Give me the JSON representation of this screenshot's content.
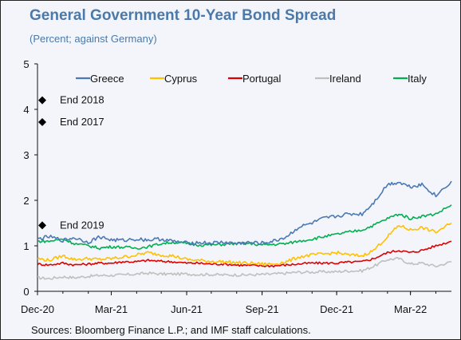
{
  "header": {
    "title": "General Government 10-Year Bond Spread",
    "subtitle": "(Percent; against Germany)"
  },
  "footer": {
    "source": "Sources: Bloomberg Finance L.P.; and IMF staff calculations."
  },
  "colors": {
    "frame_background": "#f3f5fa",
    "title": "#4a79aa",
    "Greece": "#4a79b5",
    "Cyprus": "#ffc000",
    "Portugal": "#e00000",
    "Ireland": "#bfbfbf",
    "Italy": "#00b050"
  },
  "chart_data": {
    "type": "line",
    "title": "General Government 10-Year Bond Spread",
    "subtitle": "(Percent; against Germany)",
    "xlabel": "",
    "ylabel": "",
    "x_ticks": [
      "Dec-20",
      "Mar-21",
      "Jun-21",
      "Sep-21",
      "Dec-21",
      "Mar-22"
    ],
    "xlim": [
      "2020-12-01",
      "2022-04-20"
    ],
    "ylim": [
      0,
      5
    ],
    "y_ticks": [
      0,
      1,
      2,
      3,
      4,
      5
    ],
    "grid": false,
    "legend_position": "top",
    "series": [
      {
        "name": "Greece",
        "dates": [
          "2020-12-01",
          "2020-12-15",
          "2021-01-01",
          "2021-01-15",
          "2021-02-01",
          "2021-02-15",
          "2021-03-01",
          "2021-03-15",
          "2021-04-01",
          "2021-04-15",
          "2021-05-01",
          "2021-05-15",
          "2021-06-01",
          "2021-06-15",
          "2021-07-01",
          "2021-07-15",
          "2021-08-01",
          "2021-08-15",
          "2021-09-01",
          "2021-09-15",
          "2021-10-01",
          "2021-10-15",
          "2021-11-01",
          "2021-11-15",
          "2021-12-01",
          "2021-12-15",
          "2022-01-01",
          "2022-01-15",
          "2022-02-01",
          "2022-02-15",
          "2022-03-01",
          "2022-03-15",
          "2022-04-01",
          "2022-04-20"
        ],
        "values": [
          1.15,
          1.2,
          1.12,
          1.18,
          1.08,
          1.2,
          1.13,
          1.12,
          1.15,
          1.13,
          1.15,
          1.1,
          1.06,
          1.07,
          1.06,
          1.08,
          1.05,
          1.07,
          1.06,
          1.1,
          1.2,
          1.4,
          1.5,
          1.6,
          1.65,
          1.7,
          1.7,
          1.95,
          2.35,
          2.4,
          2.3,
          2.35,
          2.1,
          2.42
        ]
      },
      {
        "name": "Cyprus",
        "dates": [
          "2020-12-01",
          "2020-12-15",
          "2021-01-01",
          "2021-01-15",
          "2021-02-01",
          "2021-02-15",
          "2021-03-01",
          "2021-03-15",
          "2021-04-01",
          "2021-04-15",
          "2021-05-01",
          "2021-05-15",
          "2021-06-01",
          "2021-06-15",
          "2021-07-01",
          "2021-07-15",
          "2021-08-01",
          "2021-08-15",
          "2021-09-01",
          "2021-09-15",
          "2021-10-01",
          "2021-10-15",
          "2021-11-01",
          "2021-11-15",
          "2021-12-01",
          "2021-12-15",
          "2022-01-01",
          "2022-01-15",
          "2022-02-01",
          "2022-02-15",
          "2022-03-01",
          "2022-03-15",
          "2022-04-01",
          "2022-04-20"
        ],
        "values": [
          0.72,
          0.68,
          0.78,
          0.7,
          0.72,
          0.7,
          0.72,
          0.75,
          0.8,
          0.85,
          0.8,
          0.78,
          0.7,
          0.68,
          0.66,
          0.65,
          0.63,
          0.62,
          0.6,
          0.6,
          0.65,
          0.75,
          0.8,
          0.82,
          0.85,
          0.8,
          0.78,
          0.9,
          1.2,
          1.45,
          1.35,
          1.4,
          1.3,
          1.5
        ]
      },
      {
        "name": "Portugal",
        "dates": [
          "2020-12-01",
          "2020-12-15",
          "2021-01-01",
          "2021-01-15",
          "2021-02-01",
          "2021-02-15",
          "2021-03-01",
          "2021-03-15",
          "2021-04-01",
          "2021-04-15",
          "2021-05-01",
          "2021-05-15",
          "2021-06-01",
          "2021-06-15",
          "2021-07-01",
          "2021-07-15",
          "2021-08-01",
          "2021-08-15",
          "2021-09-01",
          "2021-09-15",
          "2021-10-01",
          "2021-10-15",
          "2021-11-01",
          "2021-11-15",
          "2021-12-01",
          "2021-12-15",
          "2022-01-01",
          "2022-01-15",
          "2022-02-01",
          "2022-02-15",
          "2022-03-01",
          "2022-03-15",
          "2022-04-01",
          "2022-04-20"
        ],
        "values": [
          0.6,
          0.58,
          0.62,
          0.58,
          0.6,
          0.62,
          0.62,
          0.65,
          0.65,
          0.68,
          0.66,
          0.65,
          0.62,
          0.62,
          0.6,
          0.6,
          0.58,
          0.57,
          0.56,
          0.56,
          0.58,
          0.6,
          0.62,
          0.62,
          0.62,
          0.64,
          0.65,
          0.72,
          0.85,
          0.9,
          0.85,
          0.9,
          1.0,
          1.1
        ]
      },
      {
        "name": "Ireland",
        "dates": [
          "2020-12-01",
          "2020-12-15",
          "2021-01-01",
          "2021-01-15",
          "2021-02-01",
          "2021-02-15",
          "2021-03-01",
          "2021-03-15",
          "2021-04-01",
          "2021-04-15",
          "2021-05-01",
          "2021-05-15",
          "2021-06-01",
          "2021-06-15",
          "2021-07-01",
          "2021-07-15",
          "2021-08-01",
          "2021-08-15",
          "2021-09-01",
          "2021-09-15",
          "2021-10-01",
          "2021-10-15",
          "2021-11-01",
          "2021-11-15",
          "2021-12-01",
          "2021-12-15",
          "2022-01-01",
          "2022-01-15",
          "2022-02-01",
          "2022-02-15",
          "2022-03-01",
          "2022-03-15",
          "2022-04-01",
          "2022-04-20"
        ],
        "values": [
          0.3,
          0.28,
          0.32,
          0.3,
          0.33,
          0.35,
          0.35,
          0.36,
          0.38,
          0.4,
          0.38,
          0.38,
          0.38,
          0.37,
          0.37,
          0.36,
          0.36,
          0.36,
          0.37,
          0.38,
          0.4,
          0.42,
          0.42,
          0.43,
          0.43,
          0.45,
          0.45,
          0.55,
          0.7,
          0.72,
          0.6,
          0.62,
          0.55,
          0.65
        ]
      },
      {
        "name": "Italy",
        "dates": [
          "2020-12-01",
          "2020-12-15",
          "2021-01-01",
          "2021-01-15",
          "2021-02-01",
          "2021-02-15",
          "2021-03-01",
          "2021-03-15",
          "2021-04-01",
          "2021-04-15",
          "2021-05-01",
          "2021-05-15",
          "2021-06-01",
          "2021-06-15",
          "2021-07-01",
          "2021-07-15",
          "2021-08-01",
          "2021-08-15",
          "2021-09-01",
          "2021-09-15",
          "2021-10-01",
          "2021-10-15",
          "2021-11-01",
          "2021-11-15",
          "2021-12-01",
          "2021-12-15",
          "2022-01-01",
          "2022-01-15",
          "2022-02-01",
          "2022-02-15",
          "2022-03-01",
          "2022-03-15",
          "2022-04-01",
          "2022-04-20"
        ],
        "values": [
          1.1,
          1.1,
          1.15,
          1.05,
          1.0,
          0.95,
          0.98,
          0.97,
          0.95,
          0.98,
          1.05,
          1.08,
          1.05,
          1.02,
          1.02,
          1.03,
          1.05,
          1.05,
          1.02,
          1.03,
          1.05,
          1.1,
          1.15,
          1.2,
          1.25,
          1.3,
          1.35,
          1.45,
          1.6,
          1.7,
          1.6,
          1.65,
          1.7,
          1.9
        ]
      }
    ],
    "annotations": [
      {
        "label": "End 2018",
        "date": "2020-12-01",
        "value": 4.2
      },
      {
        "label": "End 2017",
        "date": "2020-12-01",
        "value": 3.72
      },
      {
        "label": "End 2019",
        "date": "2020-12-01",
        "value": 1.45
      }
    ]
  }
}
